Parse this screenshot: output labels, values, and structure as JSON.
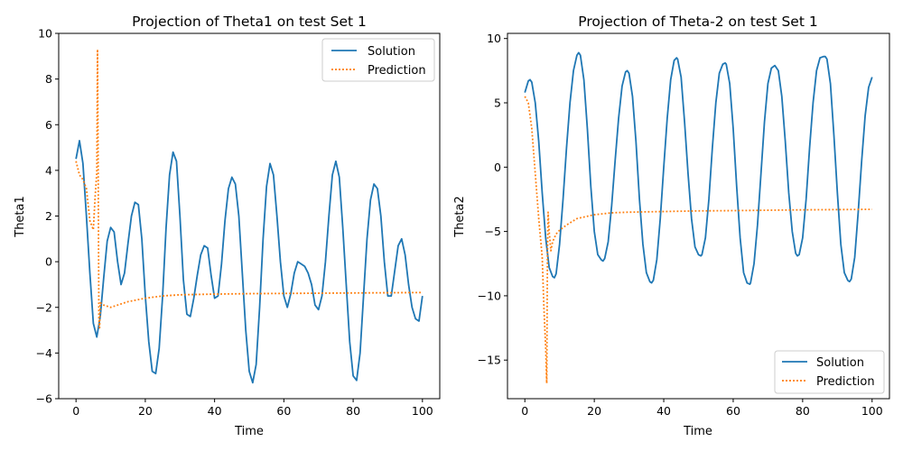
{
  "chart_data": [
    {
      "type": "line",
      "title": "Projection of Theta1 on test Set 1",
      "xlabel": "Time",
      "ylabel": "Theta1",
      "xlim": [
        -5,
        105
      ],
      "ylim": [
        -6,
        10
      ],
      "xticks": [
        0,
        20,
        40,
        60,
        80,
        100
      ],
      "yticks": [
        -6,
        -4,
        -2,
        0,
        2,
        4,
        6,
        8,
        10
      ],
      "grid": false,
      "legend_position": "top-right",
      "series": [
        {
          "name": "Solution",
          "style": "solid",
          "color": "#1f77b4",
          "x": [
            0,
            1,
            2,
            3,
            4,
            5,
            6,
            7,
            8,
            9,
            10,
            11,
            12,
            13,
            14,
            15,
            16,
            17,
            18,
            19,
            20,
            21,
            22,
            23,
            24,
            25,
            26,
            27,
            28,
            29,
            30,
            31,
            32,
            33,
            34,
            35,
            36,
            37,
            38,
            39,
            40,
            41,
            42,
            43,
            44,
            45,
            46,
            47,
            48,
            49,
            50,
            51,
            52,
            53,
            54,
            55,
            56,
            57,
            58,
            59,
            60,
            61,
            62,
            63,
            64,
            65,
            66,
            67,
            68,
            69,
            70,
            71,
            72,
            73,
            74,
            75,
            76,
            77,
            78,
            79,
            80,
            81,
            82,
            83,
            84,
            85,
            86,
            87,
            88,
            89,
            90,
            91,
            92,
            93,
            94,
            95,
            96,
            97,
            98,
            99,
            100
          ],
          "y": [
            4.5,
            5.3,
            4.3,
            2.0,
            -0.5,
            -2.7,
            -3.3,
            -2.4,
            -0.7,
            0.9,
            1.5,
            1.3,
            0.0,
            -1.0,
            -0.5,
            0.8,
            2.0,
            2.6,
            2.5,
            1.0,
            -1.5,
            -3.5,
            -4.8,
            -4.9,
            -3.8,
            -1.5,
            1.5,
            3.8,
            4.8,
            4.4,
            2.0,
            -0.8,
            -2.3,
            -2.4,
            -1.6,
            -0.6,
            0.3,
            0.7,
            0.6,
            -0.6,
            -1.6,
            -1.5,
            -0.1,
            1.8,
            3.2,
            3.7,
            3.4,
            2.0,
            -0.5,
            -3.0,
            -4.8,
            -5.3,
            -4.5,
            -2.0,
            1.0,
            3.3,
            4.3,
            3.8,
            2.0,
            0.0,
            -1.5,
            -2.0,
            -1.4,
            -0.5,
            0.0,
            -0.1,
            -0.2,
            -0.5,
            -1.0,
            -1.9,
            -2.1,
            -1.5,
            0.0,
            2.0,
            3.8,
            4.4,
            3.7,
            1.5,
            -1.0,
            -3.5,
            -5.0,
            -5.2,
            -4.0,
            -1.5,
            1.0,
            2.7,
            3.4,
            3.2,
            2.0,
            0.0,
            -1.5,
            -1.5,
            -0.4,
            0.7,
            1.0,
            0.3,
            -1.0,
            -2.0,
            -2.5,
            -2.6,
            -1.5
          ]
        },
        {
          "name": "Prediction",
          "style": "dotted",
          "color": "#ff7f0e",
          "x": [
            0,
            1,
            2,
            3,
            4,
            5,
            5.5,
            6,
            6.2,
            6.4,
            6.6,
            6.8,
            7,
            8,
            9,
            10,
            12,
            15,
            20,
            25,
            30,
            40,
            50,
            60,
            70,
            80,
            90,
            100
          ],
          "y": [
            4.4,
            3.8,
            3.6,
            3.2,
            1.8,
            1.4,
            2.8,
            3.9,
            9.3,
            3.9,
            -2.5,
            -2.9,
            -1.8,
            -1.9,
            -1.95,
            -2.0,
            -1.9,
            -1.75,
            -1.6,
            -1.5,
            -1.45,
            -1.42,
            -1.4,
            -1.39,
            -1.38,
            -1.37,
            -1.36,
            -1.35
          ]
        }
      ]
    },
    {
      "type": "line",
      "title": "Projection of Theta-2 on test Set 1",
      "xlabel": "Time",
      "ylabel": "Theta2",
      "xlim": [
        -5,
        105
      ],
      "ylim": [
        -18,
        10.4
      ],
      "xticks": [
        0,
        20,
        40,
        60,
        80,
        100
      ],
      "yticks": [
        -15,
        -10,
        -5,
        0,
        5,
        10
      ],
      "grid": false,
      "legend_position": "bottom-right",
      "series": [
        {
          "name": "Solution",
          "style": "solid",
          "color": "#1f77b4",
          "x": [
            0,
            1,
            1.5,
            2,
            3,
            4,
            5,
            6,
            7,
            8,
            8.5,
            9,
            10,
            11,
            12,
            13,
            14,
            15,
            15.5,
            16,
            17,
            18,
            19,
            20,
            21,
            22,
            22.5,
            23,
            24,
            25,
            26,
            27,
            28,
            29,
            29.5,
            30,
            31,
            32,
            33,
            34,
            35,
            36,
            36.5,
            37,
            38,
            39,
            40,
            41,
            42,
            43,
            43.7,
            44,
            45,
            46,
            47,
            48,
            49,
            50,
            50.7,
            51,
            52,
            53,
            54,
            55,
            56,
            57,
            57.7,
            58,
            59,
            60,
            61,
            62,
            63,
            64,
            64.8,
            65,
            66,
            67,
            68,
            69,
            70,
            71,
            72,
            73,
            74,
            75,
            76,
            77,
            78,
            78.5,
            79,
            80,
            81,
            82,
            83,
            84,
            85,
            86,
            86.5,
            87,
            88,
            89,
            90,
            91,
            92,
            93,
            93.5,
            94,
            95,
            96,
            97,
            98,
            99,
            100
          ],
          "y": [
            5.8,
            6.7,
            6.8,
            6.6,
            5.0,
            2.0,
            -2.0,
            -5.5,
            -7.8,
            -8.5,
            -8.6,
            -8.3,
            -6.0,
            -2.5,
            1.5,
            5.0,
            7.5,
            8.7,
            8.9,
            8.7,
            6.8,
            3.0,
            -1.5,
            -5.0,
            -6.8,
            -7.2,
            -7.3,
            -7.1,
            -5.8,
            -3.0,
            0.5,
            3.8,
            6.3,
            7.4,
            7.5,
            7.3,
            5.5,
            2.0,
            -2.5,
            -6.0,
            -8.2,
            -8.9,
            -9.0,
            -8.8,
            -7.2,
            -4.0,
            0.0,
            3.8,
            6.8,
            8.3,
            8.5,
            8.4,
            7.0,
            3.5,
            -0.5,
            -4.0,
            -6.2,
            -6.8,
            -6.9,
            -6.8,
            -5.5,
            -2.5,
            1.5,
            5.0,
            7.3,
            8.0,
            8.1,
            8.0,
            6.5,
            3.0,
            -1.5,
            -5.5,
            -8.2,
            -9.0,
            -9.1,
            -9.0,
            -7.5,
            -4.5,
            -0.5,
            3.5,
            6.5,
            7.7,
            7.9,
            7.5,
            5.5,
            2.0,
            -2.0,
            -5.0,
            -6.7,
            -6.9,
            -6.8,
            -5.5,
            -2.5,
            1.5,
            5.0,
            7.5,
            8.5,
            8.6,
            8.6,
            8.4,
            6.5,
            2.5,
            -2.0,
            -6.0,
            -8.2,
            -8.8,
            -8.9,
            -8.7,
            -7.0,
            -3.5,
            0.5,
            4.0,
            6.2,
            7.0
          ]
        },
        {
          "name": "Prediction",
          "style": "dotted",
          "color": "#ff7f0e",
          "x": [
            0,
            1,
            1.5,
            2,
            3,
            4,
            5,
            5.5,
            6,
            6.3,
            6.5,
            6.7,
            7,
            7.5,
            8,
            9,
            10,
            12,
            15,
            20,
            25,
            30,
            40,
            50,
            60,
            70,
            80,
            90,
            100
          ],
          "y": [
            5.5,
            5.0,
            4.0,
            3.0,
            -0.5,
            -4.0,
            -7.0,
            -11.0,
            -14.0,
            -16.8,
            -7.0,
            -3.5,
            -5.0,
            -6.5,
            -5.8,
            -5.2,
            -4.9,
            -4.5,
            -4.0,
            -3.7,
            -3.55,
            -3.5,
            -3.45,
            -3.4,
            -3.38,
            -3.35,
            -3.32,
            -3.3,
            -3.28
          ]
        }
      ]
    }
  ]
}
